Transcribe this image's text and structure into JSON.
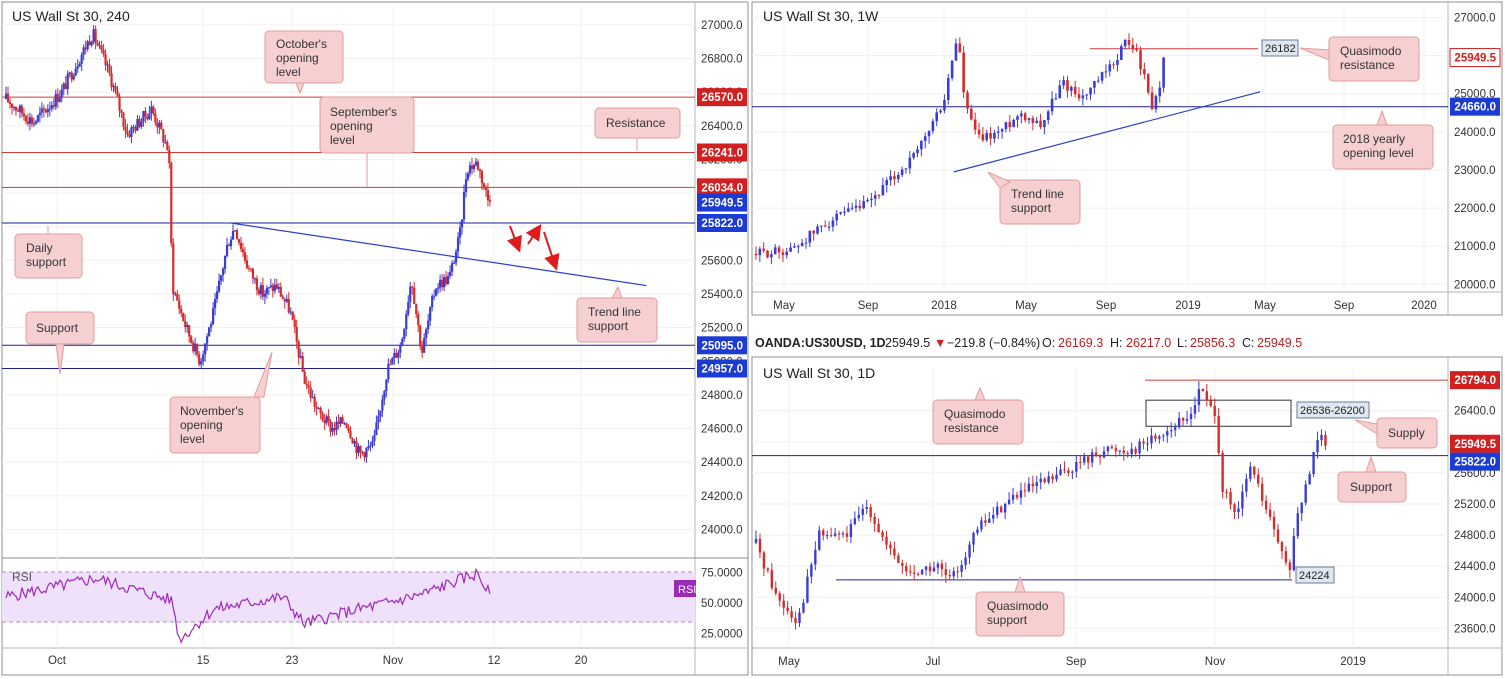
{
  "colors": {
    "bull": "#3b3bd6",
    "bear": "#d62b2b",
    "resistance_line": "#d23a3a",
    "support_line": "#1f1f9e",
    "trend_line": "#2c3fd0",
    "callout_fill": "#f6d0d0",
    "callout_border": "#e39c9c",
    "rsi_line": "#9b2ab8",
    "rsi_fill": "#efe0fb",
    "grid": "#f0f0f0",
    "axis_text": "#333333",
    "red_badge": "#d21f1f",
    "blue_badge": "#1c3bd2",
    "gray_badge": "#dfe8f2"
  },
  "left_panel": {
    "title": "US Wall St 30, 240",
    "callouts": {
      "october": "October's opening level",
      "september": "September's opening level",
      "resistance": "Resistance",
      "daily_support": "Daily support",
      "support": "Support",
      "november": "November's opening level",
      "trend_line": "Trend line support"
    },
    "price_badges": [
      "26570.0",
      "26241.0",
      "26034.0",
      "25949.5",
      "25822.0",
      "25095.0",
      "24957.0"
    ],
    "rsi_label": "RSI",
    "rsi_badge": "RSI"
  },
  "weekly_panel": {
    "title": "US Wall St 30, 1W",
    "callouts": {
      "quasimodo": "Quasimodo resistance",
      "yearly": "2018 yearly opening level",
      "trend": "Trend line support"
    },
    "level_label": "26182",
    "price_badges": [
      "25949.5",
      "24660.0"
    ]
  },
  "daily_panel": {
    "header": {
      "symbol": "OANDA:US30USD, 1D",
      "price": "25949.5",
      "change": "−219.8 (−0.84%)",
      "o_label": "O:",
      "o": "26169.3",
      "h_label": "H:",
      "h": "26217.0",
      "l_label": "L:",
      "l": "25856.3",
      "c_label": "C:",
      "c": "25949.5"
    },
    "title": "US Wall St 30, 1D",
    "callouts": {
      "quasimodo_res": "Quasimodo resistance",
      "supply": "Supply",
      "support": "Support",
      "quasimodo_sup": "Quasimodo support"
    },
    "zone_label": "26536-26200",
    "level_label": "24224",
    "price_badges": [
      "26794.0",
      "25949.5",
      "25822.0"
    ]
  },
  "chart_data": [
    {
      "type": "candlestick",
      "title": "US Wall St 30, 240",
      "x_ticks": [
        "Oct",
        "15",
        "23",
        "Nov",
        "12",
        "20"
      ],
      "y_ticks": [
        27000,
        26800,
        26600,
        26400,
        26200,
        26000,
        25800,
        25600,
        25400,
        25200,
        25000,
        24800,
        24600,
        24400,
        24200,
        24000
      ],
      "ylim": [
        23890,
        27100
      ],
      "levels": [
        {
          "value": 26570,
          "kind": "resistance"
        },
        {
          "value": 26241,
          "kind": "resistance"
        },
        {
          "value": 26034,
          "kind": "resistance"
        },
        {
          "value": 25822,
          "kind": "support"
        },
        {
          "value": 25095,
          "kind": "support"
        },
        {
          "value": 24957,
          "kind": "support"
        }
      ],
      "last_price": 25949.5,
      "trend_line": {
        "from": [
          0.33,
          25822
        ],
        "to": [
          0.93,
          25450
        ]
      },
      "anchors": [
        [
          0.0,
          26560
        ],
        [
          0.04,
          26420
        ],
        [
          0.08,
          26600
        ],
        [
          0.125,
          26950
        ],
        [
          0.15,
          26700
        ],
        [
          0.175,
          26350
        ],
        [
          0.21,
          26500
        ],
        [
          0.235,
          26250
        ],
        [
          0.24,
          25450
        ],
        [
          0.26,
          25200
        ],
        [
          0.28,
          25000
        ],
        [
          0.3,
          25300
        ],
        [
          0.32,
          25700
        ],
        [
          0.33,
          25800
        ],
        [
          0.35,
          25550
        ],
        [
          0.37,
          25400
        ],
        [
          0.39,
          25450
        ],
        [
          0.41,
          25300
        ],
        [
          0.43,
          24900
        ],
        [
          0.45,
          24700
        ],
        [
          0.47,
          24600
        ],
        [
          0.49,
          24650
        ],
        [
          0.51,
          24450
        ],
        [
          0.53,
          24500
        ],
        [
          0.55,
          24950
        ],
        [
          0.57,
          25100
        ],
        [
          0.585,
          25500
        ],
        [
          0.6,
          25050
        ],
        [
          0.62,
          25450
        ],
        [
          0.64,
          25500
        ],
        [
          0.655,
          25750
        ],
        [
          0.665,
          26150
        ],
        [
          0.68,
          26180
        ],
        [
          0.7,
          25900
        ]
      ]
    },
    {
      "type": "line",
      "title": "RSI",
      "y_ticks": [
        75,
        50,
        25
      ],
      "ylim": [
        15,
        85
      ],
      "anchors": [
        [
          0.0,
          55
        ],
        [
          0.13,
          70
        ],
        [
          0.24,
          52
        ],
        [
          0.25,
          20
        ],
        [
          0.3,
          45
        ],
        [
          0.4,
          55
        ],
        [
          0.43,
          33
        ],
        [
          0.5,
          44
        ],
        [
          0.55,
          50
        ],
        [
          0.6,
          57
        ],
        [
          0.65,
          68
        ],
        [
          0.68,
          74
        ],
        [
          0.7,
          55
        ]
      ]
    },
    {
      "type": "candlestick",
      "title": "US Wall St 30, 1W",
      "x_ticks": [
        "May",
        "Sep",
        "2018",
        "May",
        "Sep",
        "2019",
        "May",
        "Sep",
        "2020"
      ],
      "y_ticks": [
        27000,
        26000,
        25000,
        24000,
        23000,
        22000,
        21000,
        20000
      ],
      "ylim": [
        19850,
        27250
      ],
      "levels": [
        {
          "value": 26182,
          "kind": "resistance"
        },
        {
          "value": 24660,
          "kind": "support"
        }
      ],
      "last_price": 25949.5,
      "trend_line": {
        "from": [
          0.29,
          22950
        ],
        "to": [
          0.73,
          25050
        ]
      },
      "anchors": [
        [
          0.0,
          20800
        ],
        [
          0.05,
          20900
        ],
        [
          0.1,
          21600
        ],
        [
          0.16,
          22100
        ],
        [
          0.23,
          23400
        ],
        [
          0.27,
          24800
        ],
        [
          0.29,
          26600
        ],
        [
          0.3,
          24700
        ],
        [
          0.32,
          23800
        ],
        [
          0.35,
          24000
        ],
        [
          0.38,
          24500
        ],
        [
          0.41,
          24200
        ],
        [
          0.44,
          25300
        ],
        [
          0.47,
          24900
        ],
        [
          0.51,
          25700
        ],
        [
          0.53,
          26350
        ],
        [
          0.545,
          26200
        ],
        [
          0.56,
          25300
        ],
        [
          0.57,
          24600
        ],
        [
          0.58,
          25250
        ],
        [
          0.59,
          25950
        ]
      ]
    },
    {
      "type": "candlestick",
      "title": "US Wall St 30, 1D",
      "x_ticks": [
        "May",
        "Jul",
        "Sep",
        "Nov",
        "2019"
      ],
      "y_ticks": [
        26400,
        26000,
        25600,
        25200,
        24800,
        24400,
        24000,
        23600
      ],
      "ylim": [
        23450,
        26950
      ],
      "levels": [
        {
          "value": 26794,
          "kind": "resistance"
        },
        {
          "value": 25822,
          "kind": "support"
        },
        {
          "value": 24224,
          "kind": "support"
        }
      ],
      "zones": [
        {
          "from": 26200,
          "to": 26536,
          "label": "26536-26200"
        }
      ],
      "last_price": 25949.5,
      "anchors": [
        [
          0.0,
          24700
        ],
        [
          0.03,
          24000
        ],
        [
          0.06,
          23700
        ],
        [
          0.09,
          24800
        ],
        [
          0.13,
          24800
        ],
        [
          0.16,
          25200
        ],
        [
          0.19,
          24600
        ],
        [
          0.22,
          24300
        ],
        [
          0.26,
          24400
        ],
        [
          0.28,
          24200
        ],
        [
          0.32,
          24900
        ],
        [
          0.37,
          25300
        ],
        [
          0.42,
          25500
        ],
        [
          0.46,
          25700
        ],
        [
          0.5,
          25900
        ],
        [
          0.54,
          25900
        ],
        [
          0.58,
          26100
        ],
        [
          0.62,
          26300
        ],
        [
          0.64,
          26700
        ],
        [
          0.65,
          26450
        ],
        [
          0.66,
          26400
        ],
        [
          0.67,
          25400
        ],
        [
          0.69,
          25000
        ],
        [
          0.71,
          25700
        ],
        [
          0.73,
          25200
        ],
        [
          0.75,
          24700
        ],
        [
          0.765,
          24300
        ],
        [
          0.78,
          25100
        ],
        [
          0.795,
          25600
        ],
        [
          0.81,
          26217
        ],
        [
          0.82,
          25950
        ]
      ]
    }
  ]
}
